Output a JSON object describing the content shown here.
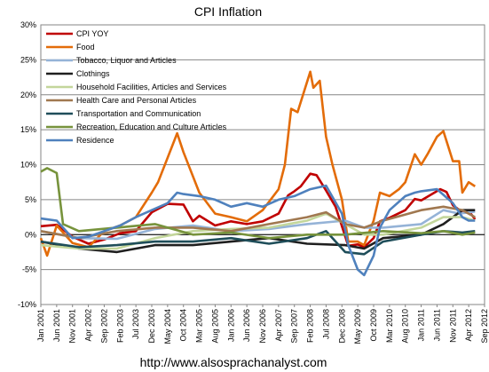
{
  "chart_data": {
    "type": "line",
    "title": "CPI Inflation",
    "footer": "http://www.alsosprachanalyst.com",
    "ylim": [
      -10,
      30
    ],
    "y_ticks": [
      "30%",
      "25%",
      "20%",
      "15%",
      "10%",
      "5%",
      "0%",
      "-5%",
      "-10%"
    ],
    "y_tick_values": [
      30,
      25,
      20,
      15,
      10,
      5,
      0,
      -5,
      -10
    ],
    "x_ticks": [
      "Jan 2001",
      "Jun 2001",
      "Nov 2001",
      "Apr 2002",
      "Sep 2002",
      "Feb 2003",
      "Jul 2003",
      "Dec 2003",
      "May 2004",
      "Oct 2004",
      "Mar 2005",
      "Aug 2005",
      "Jan 2006",
      "Jun 2006",
      "Nov 2006",
      "Apr 2007",
      "Sep 2007",
      "Feb 2008",
      "Jul 2008",
      "Dec 2008",
      "May 2009",
      "Oct 2009",
      "Mar 2010",
      "Aug 2010",
      "Jan 2011",
      "Jun 2011",
      "Nov 2011",
      "Apr 2012",
      "Sep 2012"
    ],
    "x_range_months": [
      "Jan 2001",
      "Sep 2012"
    ],
    "grid": "horizontal",
    "legend_position": "top-left",
    "series": [
      {
        "name": "CPI YOY",
        "color": "#c00000",
        "points": [
          [
            "Jan 2001",
            1.2
          ],
          [
            "Jun 2001",
            1.4
          ],
          [
            "Nov 2001",
            -0.3
          ],
          [
            "Apr 2002",
            -1.3
          ],
          [
            "Sep 2002",
            -0.7
          ],
          [
            "Feb 2003",
            0.2
          ],
          [
            "Jul 2003",
            0.5
          ],
          [
            "Dec 2003",
            3.2
          ],
          [
            "May 2004",
            4.4
          ],
          [
            "Oct 2004",
            4.3
          ],
          [
            "Jan 2005",
            1.9
          ],
          [
            "Mar 2005",
            2.7
          ],
          [
            "Aug 2005",
            1.3
          ],
          [
            "Jan 2006",
            1.9
          ],
          [
            "Jun 2006",
            1.5
          ],
          [
            "Nov 2006",
            1.9
          ],
          [
            "Apr 2007",
            3.0
          ],
          [
            "Jul 2007",
            5.6
          ],
          [
            "Sep 2007",
            6.2
          ],
          [
            "Nov 2007",
            6.9
          ],
          [
            "Feb 2008",
            8.7
          ],
          [
            "Apr 2008",
            8.5
          ],
          [
            "Jul 2008",
            6.3
          ],
          [
            "Oct 2008",
            4.0
          ],
          [
            "Dec 2008",
            1.2
          ],
          [
            "Feb 2009",
            -1.6
          ],
          [
            "May 2009",
            -1.4
          ],
          [
            "Jul 2009",
            -1.8
          ],
          [
            "Oct 2009",
            -0.5
          ],
          [
            "Dec 2009",
            1.9
          ],
          [
            "Mar 2010",
            2.4
          ],
          [
            "Aug 2010",
            3.5
          ],
          [
            "Nov 2010",
            5.1
          ],
          [
            "Jan 2011",
            4.9
          ],
          [
            "Jul 2011",
            6.5
          ],
          [
            "Sep 2011",
            6.1
          ],
          [
            "Nov 2011",
            4.2
          ],
          [
            "Feb 2012",
            3.2
          ],
          [
            "Apr 2012",
            3.4
          ],
          [
            "Jun 2012",
            2.2
          ]
        ]
      },
      {
        "name": "Food",
        "color": "#e36c09",
        "points": [
          [
            "Jan 2001",
            -0.5
          ],
          [
            "Mar 2001",
            -3.0
          ],
          [
            "Jun 2001",
            1.3
          ],
          [
            "Nov 2001",
            -1.2
          ],
          [
            "Apr 2002",
            -1.8
          ],
          [
            "Sep 2002",
            0.5
          ],
          [
            "Feb 2003",
            1.3
          ],
          [
            "Jul 2003",
            2.5
          ],
          [
            "Dec 2003",
            6.0
          ],
          [
            "Feb 2004",
            7.5
          ],
          [
            "May 2004",
            11.0
          ],
          [
            "Aug 2004",
            14.5
          ],
          [
            "Oct 2004",
            11.8
          ],
          [
            "Mar 2005",
            6.0
          ],
          [
            "Aug 2005",
            3.0
          ],
          [
            "Jan 2006",
            2.5
          ],
          [
            "Jun 2006",
            1.9
          ],
          [
            "Nov 2006",
            3.5
          ],
          [
            "Apr 2007",
            6.5
          ],
          [
            "Jun 2007",
            10.0
          ],
          [
            "Aug 2007",
            18.0
          ],
          [
            "Oct 2007",
            17.5
          ],
          [
            "Feb 2008",
            23.3
          ],
          [
            "Mar 2008",
            21.0
          ],
          [
            "May 2008",
            22.0
          ],
          [
            "Jul 2008",
            14.0
          ],
          [
            "Sep 2008",
            10.0
          ],
          [
            "Dec 2008",
            5.0
          ],
          [
            "Feb 2009",
            -1.0
          ],
          [
            "May 2009",
            -1.0
          ],
          [
            "Jul 2009",
            -1.5
          ],
          [
            "Oct 2009",
            2.0
          ],
          [
            "Dec 2009",
            6.0
          ],
          [
            "Mar 2010",
            5.5
          ],
          [
            "Jun 2010",
            6.5
          ],
          [
            "Aug 2010",
            7.5
          ],
          [
            "Nov 2010",
            11.5
          ],
          [
            "Jan 2011",
            10.0
          ],
          [
            "Mar 2011",
            11.5
          ],
          [
            "Jun 2011",
            14.0
          ],
          [
            "Aug 2011",
            14.8
          ],
          [
            "Nov 2011",
            10.5
          ],
          [
            "Jan 2012",
            10.5
          ],
          [
            "Feb 2012",
            6.0
          ],
          [
            "Apr 2012",
            7.5
          ],
          [
            "Jun 2012",
            6.9
          ]
        ]
      },
      {
        "name": "Tobacco, Liquor and Articles",
        "color": "#95b3d7",
        "points": [
          [
            "Jan 2001",
            0.5
          ],
          [
            "Jan 2002",
            -0.5
          ],
          [
            "Jan 2003",
            -0.6
          ],
          [
            "Jan 2004",
            0.8
          ],
          [
            "Jan 2005",
            1.3
          ],
          [
            "Jan 2006",
            0.5
          ],
          [
            "Jan 2007",
            0.8
          ],
          [
            "Jan 2008",
            1.5
          ],
          [
            "Jan 2009",
            2.0
          ],
          [
            "Jul 2009",
            1.0
          ],
          [
            "Jan 2010",
            1.0
          ],
          [
            "Jan 2011",
            1.5
          ],
          [
            "Aug 2011",
            3.5
          ],
          [
            "Jan 2012",
            3.0
          ],
          [
            "Jun 2012",
            3.3
          ]
        ]
      },
      {
        "name": "Clothings",
        "color": "#1f1f1f",
        "points": [
          [
            "Jan 2001",
            -1.0
          ],
          [
            "Jan 2002",
            -2.0
          ],
          [
            "Jan 2003",
            -2.5
          ],
          [
            "Jan 2004",
            -1.5
          ],
          [
            "Jan 2005",
            -1.5
          ],
          [
            "Jan 2006",
            -1.0
          ],
          [
            "Jan 2007",
            -0.5
          ],
          [
            "Jan 2008",
            -1.3
          ],
          [
            "Jan 2009",
            -1.5
          ],
          [
            "Jul 2009",
            -2.0
          ],
          [
            "Jan 2010",
            -0.5
          ],
          [
            "Jan 2011",
            0.0
          ],
          [
            "Aug 2011",
            1.5
          ],
          [
            "Feb 2012",
            3.5
          ],
          [
            "Jun 2012",
            3.5
          ]
        ]
      },
      {
        "name": "Household Facilities, Articles and Services",
        "color": "#c3d69b",
        "points": [
          [
            "Jan 2001",
            -1.5
          ],
          [
            "Jan 2002",
            -2.0
          ],
          [
            "Jan 2003",
            -2.0
          ],
          [
            "Jan 2004",
            -0.5
          ],
          [
            "Jan 2005",
            0.5
          ],
          [
            "Jan 2006",
            0.8
          ],
          [
            "Jan 2007",
            1.0
          ],
          [
            "Jan 2008",
            2.0
          ],
          [
            "Jul 2008",
            3.0
          ],
          [
            "Jan 2009",
            1.5
          ],
          [
            "Jul 2009",
            0.0
          ],
          [
            "Jan 2010",
            0.0
          ],
          [
            "Jan 2011",
            1.0
          ],
          [
            "Aug 2011",
            2.5
          ],
          [
            "Feb 2012",
            2.5
          ],
          [
            "Jun 2012",
            2.0
          ]
        ]
      },
      {
        "name": "Health Care and Personal Articles",
        "color": "#a07850",
        "points": [
          [
            "Jan 2001",
            0.5
          ],
          [
            "Jan 2002",
            -0.5
          ],
          [
            "Jan 2003",
            0.5
          ],
          [
            "Jan 2004",
            1.0
          ],
          [
            "Jan 2005",
            1.0
          ],
          [
            "Jan 2006",
            0.5
          ],
          [
            "Jan 2007",
            1.5
          ],
          [
            "Jan 2008",
            2.5
          ],
          [
            "Jul 2008",
            3.2
          ],
          [
            "Jan 2009",
            1.5
          ],
          [
            "Jul 2009",
            1.0
          ],
          [
            "Jan 2010",
            2.0
          ],
          [
            "Jan 2011",
            3.5
          ],
          [
            "Aug 2011",
            4.0
          ],
          [
            "Feb 2012",
            3.5
          ],
          [
            "Jun 2012",
            2.5
          ]
        ]
      },
      {
        "name": "Transportation and Communication",
        "color": "#1f4e5a",
        "points": [
          [
            "Jan 2001",
            -1.0
          ],
          [
            "Jan 2002",
            -1.8
          ],
          [
            "Jan 2003",
            -1.5
          ],
          [
            "Jan 2004",
            -1.0
          ],
          [
            "Jan 2005",
            -1.0
          ],
          [
            "Jan 2006",
            -0.5
          ],
          [
            "Jan 2007",
            -1.3
          ],
          [
            "Jan 2008",
            -0.5
          ],
          [
            "Jul 2008",
            0.5
          ],
          [
            "Jan 2009",
            -2.5
          ],
          [
            "Jul 2009",
            -2.8
          ],
          [
            "Jan 2010",
            -1.0
          ],
          [
            "Jan 2011",
            0.0
          ],
          [
            "Aug 2011",
            0.5
          ],
          [
            "Feb 2012",
            0.3
          ],
          [
            "Jun 2012",
            0.5
          ]
        ]
      },
      {
        "name": "Recreation, Education and Culture Articles",
        "color": "#77933c",
        "points": [
          [
            "Jan 2001",
            9.0
          ],
          [
            "Mar 2001",
            9.5
          ],
          [
            "Jun 2001",
            8.8
          ],
          [
            "Aug 2001",
            1.5
          ],
          [
            "Jan 2002",
            0.5
          ],
          [
            "Jan 2003",
            1.0
          ],
          [
            "Jan 2004",
            1.5
          ],
          [
            "Jan 2005",
            0.0
          ],
          [
            "Jan 2006",
            0.3
          ],
          [
            "Jan 2007",
            -0.5
          ],
          [
            "Jan 2008",
            0.0
          ],
          [
            "Jan 2009",
            0.0
          ],
          [
            "Jan 2010",
            0.5
          ],
          [
            "Jan 2011",
            0.2
          ],
          [
            "Aug 2011",
            0.5
          ],
          [
            "Feb 2012",
            0.0
          ],
          [
            "Jun 2012",
            0.3
          ]
        ]
      },
      {
        "name": "Residence",
        "color": "#4f81bd",
        "points": [
          [
            "Jan 2001",
            2.3
          ],
          [
            "Jun 2001",
            2.0
          ],
          [
            "Nov 2001",
            -0.5
          ],
          [
            "Apr 2002",
            -0.3
          ],
          [
            "Sep 2002",
            0.5
          ],
          [
            "Feb 2003",
            1.3
          ],
          [
            "Jul 2003",
            2.5
          ],
          [
            "Dec 2003",
            3.5
          ],
          [
            "May 2004",
            4.5
          ],
          [
            "Aug 2004",
            6.0
          ],
          [
            "Oct 2004",
            5.8
          ],
          [
            "Mar 2005",
            5.5
          ],
          [
            "Aug 2005",
            5.0
          ],
          [
            "Jan 2006",
            4.0
          ],
          [
            "Jun 2006",
            4.5
          ],
          [
            "Nov 2006",
            4.0
          ],
          [
            "Apr 2007",
            5.0
          ],
          [
            "Sep 2007",
            5.5
          ],
          [
            "Feb 2008",
            6.5
          ],
          [
            "Jul 2008",
            7.0
          ],
          [
            "Dec 2008",
            3.0
          ],
          [
            "Feb 2009",
            -1.5
          ],
          [
            "May 2009",
            -5.0
          ],
          [
            "Jul 2009",
            -5.8
          ],
          [
            "Oct 2009",
            -3.0
          ],
          [
            "Dec 2009",
            1.0
          ],
          [
            "Mar 2010",
            3.5
          ],
          [
            "Aug 2010",
            5.5
          ],
          [
            "Nov 2010",
            6.0
          ],
          [
            "Jan 2011",
            6.2
          ],
          [
            "Jun 2011",
            6.5
          ],
          [
            "Nov 2011",
            4.5
          ],
          [
            "Feb 2012",
            2.5
          ],
          [
            "Apr 2012",
            2.0
          ],
          [
            "Jun 2012",
            2.0
          ]
        ]
      }
    ]
  }
}
